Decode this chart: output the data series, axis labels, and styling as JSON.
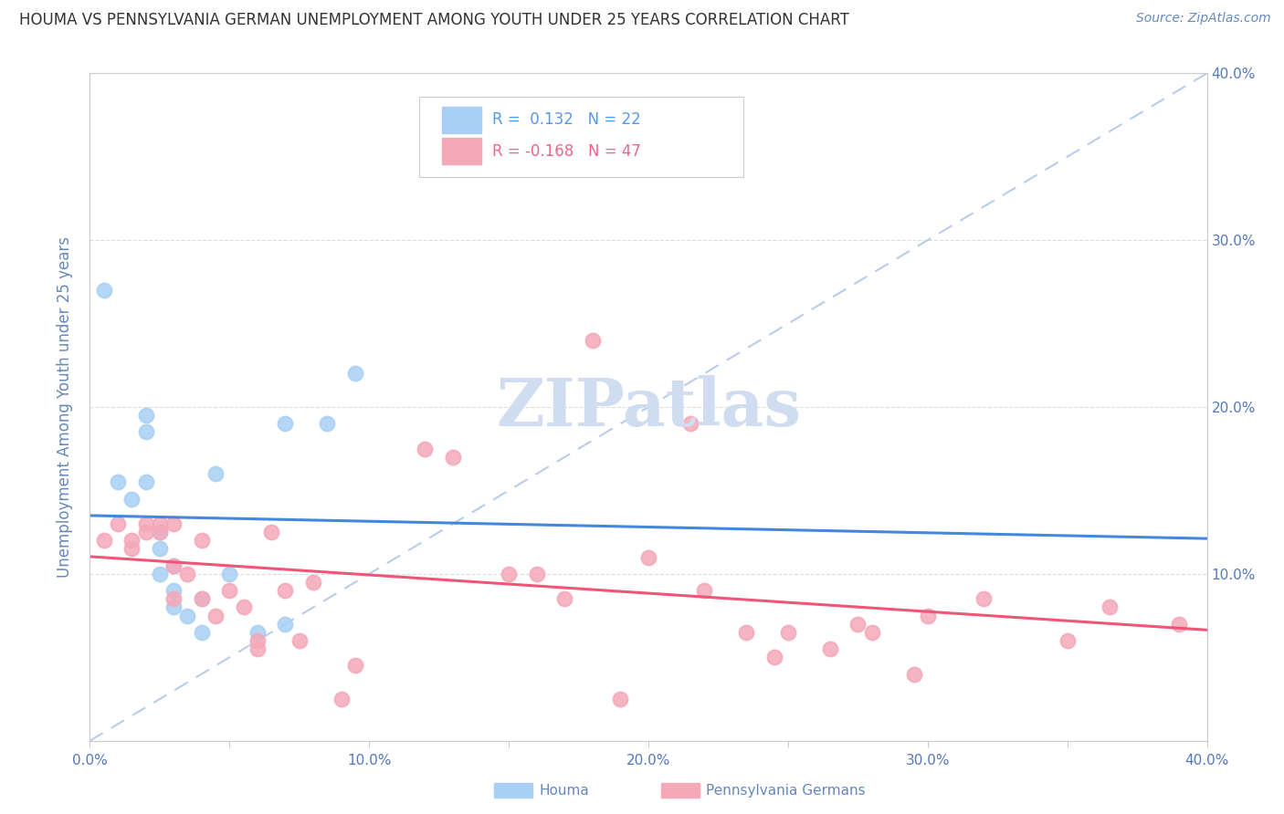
{
  "title": "HOUMA VS PENNSYLVANIA GERMAN UNEMPLOYMENT AMONG YOUTH UNDER 25 YEARS CORRELATION CHART",
  "source": "Source: ZipAtlas.com",
  "ylabel": "Unemployment Among Youth under 25 years",
  "xlim": [
    0.0,
    0.4
  ],
  "ylim": [
    0.0,
    0.4
  ],
  "xtick_labels": [
    "0.0%",
    "",
    "10.0%",
    "",
    "20.0%",
    "",
    "30.0%",
    "",
    "40.0%"
  ],
  "xtick_values": [
    0.0,
    0.05,
    0.1,
    0.15,
    0.2,
    0.25,
    0.3,
    0.35,
    0.4
  ],
  "right_ytick_labels": [
    "10.0%",
    "20.0%",
    "30.0%",
    "40.0%"
  ],
  "right_ytick_values": [
    0.1,
    0.2,
    0.3,
    0.4
  ],
  "houma_color": "#a8d0f5",
  "penn_color": "#f5a8b8",
  "houma_line_color": "#4488dd",
  "penn_line_color": "#ee5577",
  "dashed_line_color": "#b8ccee",
  "houma_R": 0.132,
  "houma_N": 22,
  "penn_R": -0.168,
  "penn_N": 47,
  "houma_scatter_x": [
    0.005,
    0.01,
    0.015,
    0.02,
    0.02,
    0.02,
    0.025,
    0.025,
    0.025,
    0.03,
    0.03,
    0.03,
    0.035,
    0.04,
    0.04,
    0.045,
    0.05,
    0.06,
    0.07,
    0.07,
    0.085,
    0.095
  ],
  "houma_scatter_y": [
    0.27,
    0.155,
    0.145,
    0.155,
    0.185,
    0.195,
    0.1,
    0.115,
    0.125,
    0.105,
    0.09,
    0.08,
    0.075,
    0.085,
    0.065,
    0.16,
    0.1,
    0.065,
    0.19,
    0.07,
    0.19,
    0.22
  ],
  "penn_scatter_x": [
    0.005,
    0.01,
    0.015,
    0.015,
    0.02,
    0.02,
    0.025,
    0.025,
    0.03,
    0.03,
    0.03,
    0.035,
    0.04,
    0.04,
    0.045,
    0.05,
    0.055,
    0.06,
    0.06,
    0.065,
    0.07,
    0.075,
    0.08,
    0.09,
    0.095,
    0.12,
    0.13,
    0.15,
    0.16,
    0.17,
    0.18,
    0.19,
    0.2,
    0.215,
    0.22,
    0.235,
    0.245,
    0.25,
    0.265,
    0.275,
    0.28,
    0.295,
    0.3,
    0.32,
    0.35,
    0.365,
    0.39
  ],
  "penn_scatter_y": [
    0.12,
    0.13,
    0.12,
    0.115,
    0.125,
    0.13,
    0.125,
    0.13,
    0.13,
    0.105,
    0.085,
    0.1,
    0.12,
    0.085,
    0.075,
    0.09,
    0.08,
    0.06,
    0.055,
    0.125,
    0.09,
    0.06,
    0.095,
    0.025,
    0.045,
    0.175,
    0.17,
    0.1,
    0.1,
    0.085,
    0.24,
    0.025,
    0.11,
    0.19,
    0.09,
    0.065,
    0.05,
    0.065,
    0.055,
    0.07,
    0.065,
    0.04,
    0.075,
    0.085,
    0.06,
    0.08,
    0.07
  ],
  "background_color": "#ffffff",
  "grid_color": "#dddddd",
  "title_color": "#333333",
  "axis_label_color": "#6688bb",
  "tick_color": "#5577bb",
  "watermark_color": "#d0ddf0",
  "legend_color_houma": "#5599ee",
  "legend_color_penn": "#ee6688"
}
